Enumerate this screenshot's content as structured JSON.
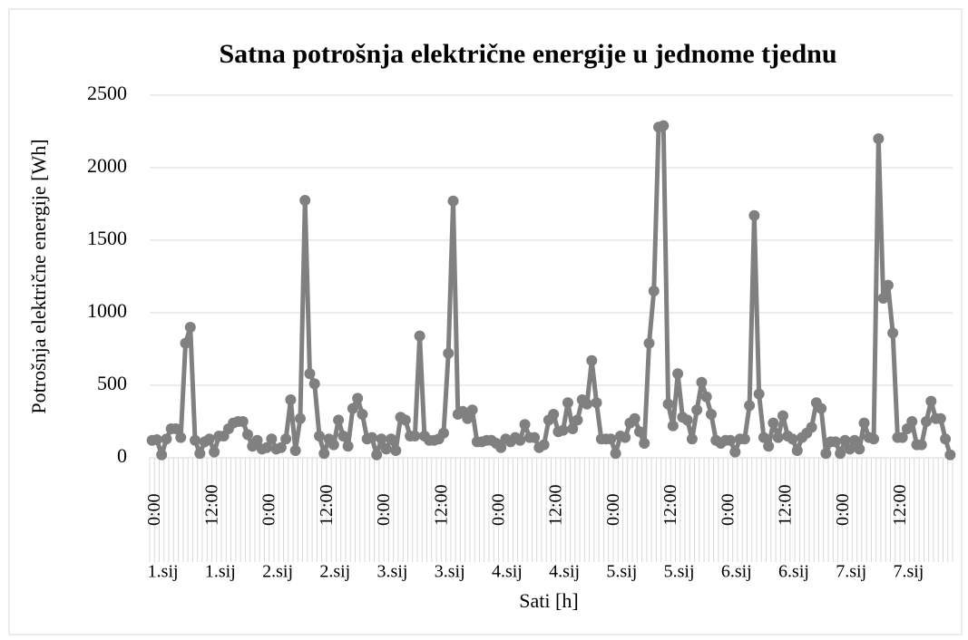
{
  "chart_data": {
    "type": "line",
    "title": "Satna potrošnja električne energije u jednome tjednu",
    "x_label": "Sati [h]",
    "y_label": "Potrošnja električne energije [Wh]",
    "ylim": [
      0,
      2500
    ],
    "yticks": [
      0,
      500,
      1000,
      1500,
      2000,
      2500
    ],
    "grid": true,
    "categories": [
      "0:00",
      null,
      null,
      null,
      null,
      null,
      null,
      null,
      null,
      null,
      null,
      null,
      "12:00",
      null,
      null,
      null,
      null,
      null,
      null,
      null,
      null,
      null,
      null,
      null,
      "0:00",
      null,
      null,
      null,
      null,
      null,
      null,
      null,
      null,
      null,
      null,
      null,
      "12:00",
      null,
      null,
      null,
      null,
      null,
      null,
      null,
      null,
      null,
      null,
      null,
      "0:00",
      null,
      null,
      null,
      null,
      null,
      null,
      null,
      null,
      null,
      null,
      null,
      "12:00",
      null,
      null,
      null,
      null,
      null,
      null,
      null,
      null,
      null,
      null,
      null,
      "0:00",
      null,
      null,
      null,
      null,
      null,
      null,
      null,
      null,
      null,
      null,
      null,
      "12:00",
      null,
      null,
      null,
      null,
      null,
      null,
      null,
      null,
      null,
      null,
      null,
      "0:00",
      null,
      null,
      null,
      null,
      null,
      null,
      null,
      null,
      null,
      null,
      null,
      "12:00",
      null,
      null,
      null,
      null,
      null,
      null,
      null,
      null,
      null,
      null,
      null,
      "0:00",
      null,
      null,
      null,
      null,
      null,
      null,
      null,
      null,
      null,
      null,
      null,
      "12:00",
      null,
      null,
      null,
      null,
      null,
      null,
      null,
      null,
      null,
      null,
      null,
      "0:00",
      null,
      null,
      null,
      null,
      null,
      null,
      null,
      null,
      null,
      null,
      null,
      "12:00",
      null,
      null,
      null,
      null,
      null,
      null,
      null,
      null,
      null,
      null,
      null
    ],
    "category_groups": [
      "1.sij",
      null,
      null,
      null,
      null,
      null,
      null,
      null,
      null,
      null,
      null,
      null,
      "1.sij",
      null,
      null,
      null,
      null,
      null,
      null,
      null,
      null,
      null,
      null,
      null,
      "2.sij",
      null,
      null,
      null,
      null,
      null,
      null,
      null,
      null,
      null,
      null,
      null,
      "2.sij",
      null,
      null,
      null,
      null,
      null,
      null,
      null,
      null,
      null,
      null,
      null,
      "3.sij",
      null,
      null,
      null,
      null,
      null,
      null,
      null,
      null,
      null,
      null,
      null,
      "3.sij",
      null,
      null,
      null,
      null,
      null,
      null,
      null,
      null,
      null,
      null,
      null,
      "4.sij",
      null,
      null,
      null,
      null,
      null,
      null,
      null,
      null,
      null,
      null,
      null,
      "4.sij",
      null,
      null,
      null,
      null,
      null,
      null,
      null,
      null,
      null,
      null,
      null,
      "5.sij",
      null,
      null,
      null,
      null,
      null,
      null,
      null,
      null,
      null,
      null,
      null,
      "5.sij",
      null,
      null,
      null,
      null,
      null,
      null,
      null,
      null,
      null,
      null,
      null,
      "6.sij",
      null,
      null,
      null,
      null,
      null,
      null,
      null,
      null,
      null,
      null,
      null,
      "6.sij",
      null,
      null,
      null,
      null,
      null,
      null,
      null,
      null,
      null,
      null,
      null,
      "7.sij",
      null,
      null,
      null,
      null,
      null,
      null,
      null,
      null,
      null,
      null,
      null,
      "7.sij",
      null,
      null,
      null,
      null,
      null,
      null,
      null,
      null,
      null,
      null,
      null
    ],
    "color": "#808080",
    "values": [
      120,
      125,
      20,
      130,
      200,
      200,
      140,
      790,
      900,
      120,
      30,
      110,
      130,
      40,
      150,
      150,
      200,
      240,
      250,
      250,
      160,
      80,
      120,
      60,
      70,
      130,
      60,
      70,
      130,
      400,
      50,
      270,
      1775,
      580,
      510,
      150,
      30,
      130,
      90,
      260,
      150,
      80,
      340,
      410,
      300,
      130,
      140,
      20,
      130,
      60,
      130,
      50,
      280,
      260,
      150,
      150,
      840,
      150,
      120,
      120,
      130,
      170,
      720,
      1770,
      300,
      320,
      270,
      330,
      110,
      110,
      120,
      120,
      100,
      70,
      130,
      110,
      140,
      120,
      230,
      140,
      140,
      70,
      90,
      260,
      300,
      180,
      190,
      380,
      200,
      260,
      400,
      370,
      670,
      380,
      130,
      130,
      130,
      30,
      150,
      140,
      240,
      270,
      180,
      100,
      790,
      1150,
      2280,
      2290,
      370,
      220,
      580,
      280,
      260,
      130,
      330,
      520,
      420,
      300,
      120,
      100,
      120,
      120,
      40,
      130,
      130,
      360,
      1670,
      440,
      140,
      80,
      240,
      140,
      290,
      150,
      130,
      50,
      140,
      170,
      210,
      380,
      340,
      30,
      110,
      110,
      30,
      120,
      60,
      120,
      60,
      240,
      140,
      130,
      2200,
      1100,
      1190,
      860,
      140,
      140,
      200,
      250,
      90,
      90,
      250,
      390,
      270,
      270,
      130,
      20
    ]
  }
}
